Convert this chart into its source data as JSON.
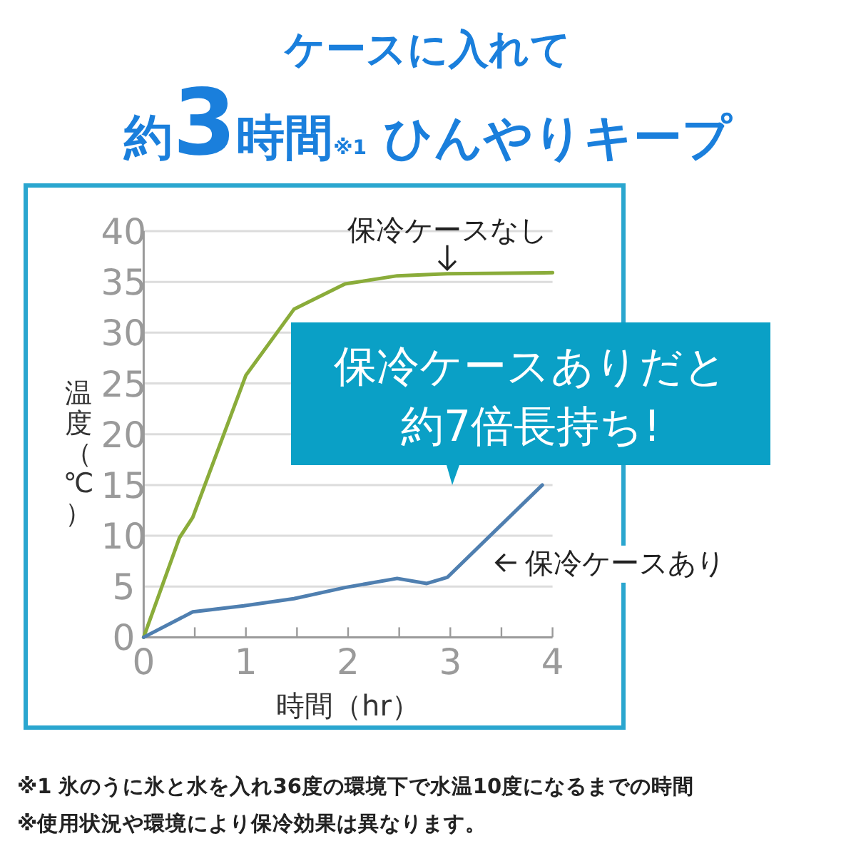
{
  "chart_data": {
    "type": "line",
    "title": "ケースに入れて",
    "subtitle": "約3時間$_{※1}$ ひんやりキープ",
    "xlabel": "時間（hr）",
    "ylabel": "温度（℃）",
    "xlim": [
      0,
      4
    ],
    "ylim": [
      0,
      40
    ],
    "xticks": [
      0,
      {
        "value": 0.5,
        "label": null
      },
      1,
      {
        "value": 1.5,
        "label": null
      },
      2,
      {
        "value": 2.5,
        "label": null
      },
      3,
      {
        "value": 3.5,
        "label": null
      },
      4
    ],
    "yticks": [
      0,
      5,
      10,
      15,
      20,
      25,
      30,
      35,
      40
    ],
    "grid": "y",
    "marker": "none",
    "line_style": "solid",
    "series": [
      {
        "name": "保冷ケースなし",
        "color": "#8aac3a",
        "x": [
          0,
          0.35,
          0.48,
          1,
          1.47,
          1.97,
          2.48,
          2.97,
          4
        ],
        "values": [
          0,
          9.8,
          11.8,
          25.8,
          32.3,
          34.8,
          35.6,
          35.8,
          35.9
        ]
      },
      {
        "name": "保冷ケースあり",
        "color": "#4f7fb0",
        "x": [
          0,
          0.48,
          0.98,
          1.47,
          1.97,
          2.48,
          2.77,
          2.97,
          3.9
        ],
        "values": [
          0,
          2.5,
          3.1,
          3.8,
          4.9,
          5.8,
          5.3,
          5.9,
          15
        ]
      }
    ],
    "annotations": [
      "保冷ケースありだと約7倍長持ち!",
      "※1 氷のうに氷と水を入れ36度の環境下で水温10度になるまでの時間",
      "※使用状況や環境により保冷効果は異なります。"
    ]
  }
}
